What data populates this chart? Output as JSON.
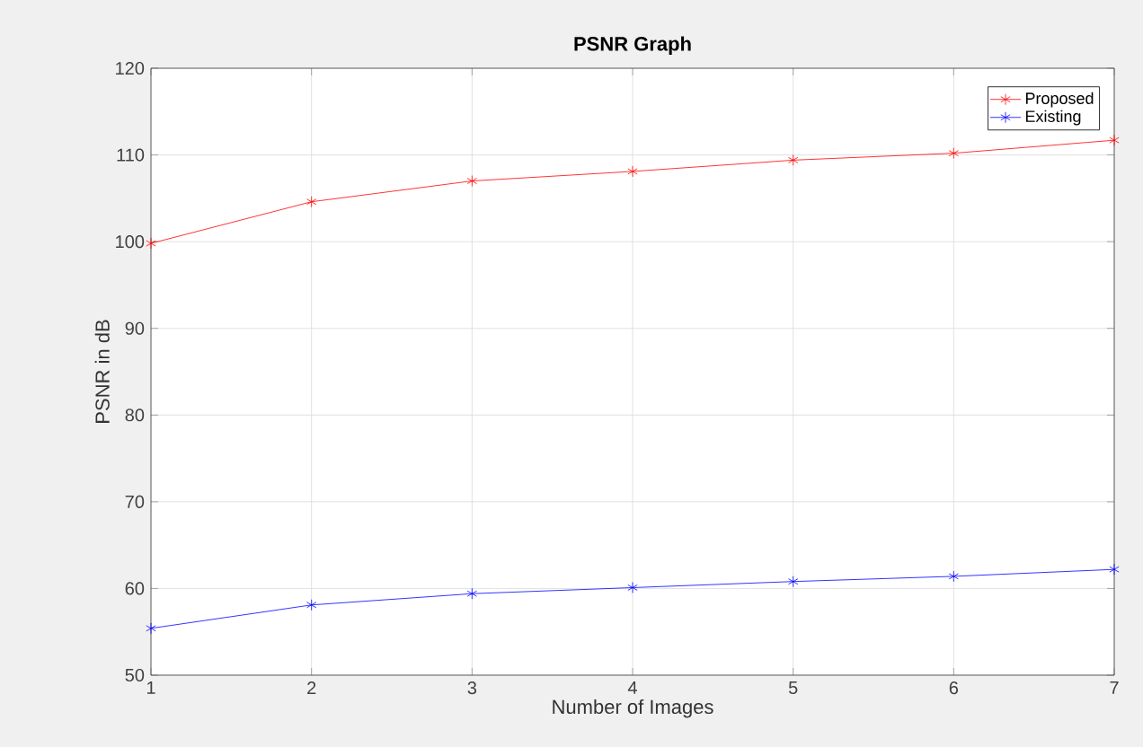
{
  "chart_data": {
    "type": "line",
    "title": "PSNR Graph",
    "xlabel": "Number of Images",
    "ylabel": "PSNR in dB",
    "x": [
      1,
      2,
      3,
      4,
      5,
      6,
      7
    ],
    "series": [
      {
        "name": "Proposed",
        "color": "#ff0000",
        "values": [
          99.8,
          104.6,
          107.0,
          108.1,
          109.4,
          110.2,
          111.7
        ]
      },
      {
        "name": "Existing",
        "color": "#0000ff",
        "values": [
          55.4,
          58.1,
          59.4,
          60.1,
          60.8,
          61.4,
          62.2
        ]
      }
    ],
    "xlim": [
      1,
      7
    ],
    "xticks": [
      1,
      2,
      3,
      4,
      5,
      6,
      7
    ],
    "ylim": [
      50,
      120
    ],
    "yticks": [
      50,
      60,
      70,
      80,
      90,
      100,
      110,
      120
    ],
    "grid": true,
    "legend": "top right",
    "marker": "cross",
    "line_style": "solid"
  }
}
